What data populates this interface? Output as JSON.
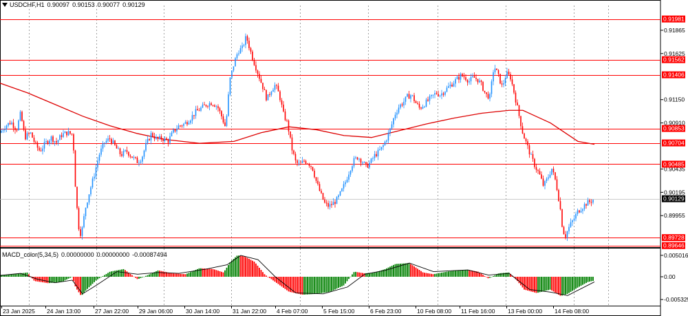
{
  "header": {
    "symbol": "USDCHF,H1",
    "open": "0.90097",
    "high": "0.90153",
    "low": "0.90077",
    "close": "0.90129"
  },
  "price_axis": {
    "ticks": [
      "0.91865",
      "0.91625",
      "0.91150",
      "0.90910",
      "0.90435",
      "0.90195",
      "0.89955"
    ],
    "level_labels": [
      "0.91981",
      "0.91562",
      "0.91406",
      "0.90853",
      "0.90704",
      "0.90485",
      "0.89728",
      "0.89646"
    ],
    "current_price": "0.90129"
  },
  "time_axis": {
    "labels": [
      "23 Jan 2025",
      "24 Jan 13:00",
      "27 Jan 22:00",
      "29 Jan 06:00",
      "30 Jan 14:00",
      "31 Jan 22:00",
      "4 Feb 07:00",
      "5 Feb 15:00",
      "6 Feb 23:00",
      "10 Feb 08:00",
      "11 Feb 16:00",
      "13 Feb 00:00",
      "14 Feb 08:00"
    ]
  },
  "macd": {
    "title": "MACD_color(5,34,5)",
    "values": [
      "0.00000000",
      "0.00000000",
      "-0.00087494"
    ],
    "axis_ticks": [
      "0.0050164",
      "0.00",
      "-0.0053254"
    ]
  },
  "colors": {
    "bull": "#1e90ff",
    "bear": "#ff0000",
    "level_line": "#ff0000",
    "ma_line": "#dd0000",
    "hist_up": "#008000",
    "hist_down": "#ff0000",
    "current_tag": "#000000"
  },
  "chart_data": {
    "type": "candlestick",
    "symbol": "USDCHF",
    "timeframe": "H1",
    "close_path": [
      [
        0,
        0.9081
      ],
      [
        8,
        0.9088
      ],
      [
        16,
        0.9092
      ],
      [
        24,
        0.9084
      ],
      [
        30,
        0.9101
      ],
      [
        36,
        0.9076
      ],
      [
        44,
        0.9081
      ],
      [
        52,
        0.9068
      ],
      [
        58,
        0.9062
      ],
      [
        66,
        0.907
      ],
      [
        74,
        0.9076
      ],
      [
        82,
        0.9071
      ],
      [
        90,
        0.9079
      ],
      [
        98,
        0.9081
      ],
      [
        106,
        0.9079
      ],
      [
        110,
        0.902
      ],
      [
        114,
        0.8985
      ],
      [
        118,
        0.8975
      ],
      [
        124,
        0.9003
      ],
      [
        130,
        0.902
      ],
      [
        136,
        0.9035
      ],
      [
        144,
        0.9058
      ],
      [
        152,
        0.9071
      ],
      [
        160,
        0.9075
      ],
      [
        168,
        0.9066
      ],
      [
        176,
        0.9058
      ],
      [
        184,
        0.9062
      ],
      [
        192,
        0.9056
      ],
      [
        200,
        0.9051
      ],
      [
        206,
        0.9055
      ],
      [
        212,
        0.9068
      ],
      [
        220,
        0.908
      ],
      [
        228,
        0.9074
      ],
      [
        236,
        0.9075
      ],
      [
        244,
        0.9072
      ],
      [
        252,
        0.9082
      ],
      [
        260,
        0.9088
      ],
      [
        268,
        0.909
      ],
      [
        276,
        0.9095
      ],
      [
        284,
        0.9102
      ],
      [
        292,
        0.9106
      ],
      [
        300,
        0.911
      ],
      [
        308,
        0.9112
      ],
      [
        316,
        0.9108
      ],
      [
        322,
        0.9098
      ],
      [
        328,
        0.9086
      ],
      [
        334,
        0.9135
      ],
      [
        340,
        0.9152
      ],
      [
        346,
        0.9165
      ],
      [
        352,
        0.9168
      ],
      [
        358,
        0.918
      ],
      [
        364,
        0.9165
      ],
      [
        370,
        0.9152
      ],
      [
        376,
        0.914
      ],
      [
        382,
        0.9128
      ],
      [
        388,
        0.9115
      ],
      [
        394,
        0.9125
      ],
      [
        400,
        0.913
      ],
      [
        406,
        0.912
      ],
      [
        412,
        0.91
      ],
      [
        418,
        0.909
      ],
      [
        424,
        0.9065
      ],
      [
        430,
        0.905
      ],
      [
        436,
        0.9048
      ],
      [
        442,
        0.9052
      ],
      [
        448,
        0.905
      ],
      [
        454,
        0.9045
      ],
      [
        460,
        0.903
      ],
      [
        466,
        0.9018
      ],
      [
        472,
        0.9008
      ],
      [
        478,
        0.9005
      ],
      [
        484,
        0.9008
      ],
      [
        490,
        0.9012
      ],
      [
        496,
        0.902
      ],
      [
        502,
        0.903
      ],
      [
        508,
        0.9042
      ],
      [
        514,
        0.9052
      ],
      [
        520,
        0.9056
      ],
      [
        526,
        0.9052
      ],
      [
        532,
        0.9046
      ],
      [
        538,
        0.905
      ],
      [
        544,
        0.9057
      ],
      [
        550,
        0.9061
      ],
      [
        556,
        0.9066
      ],
      [
        562,
        0.9075
      ],
      [
        568,
        0.9086
      ],
      [
        574,
        0.91
      ],
      [
        580,
        0.9108
      ],
      [
        586,
        0.9112
      ],
      [
        592,
        0.9118
      ],
      [
        598,
        0.912
      ],
      [
        604,
        0.9112
      ],
      [
        610,
        0.9106
      ],
      [
        616,
        0.911
      ],
      [
        622,
        0.9114
      ],
      [
        628,
        0.9118
      ],
      [
        634,
        0.9122
      ],
      [
        640,
        0.912
      ],
      [
        646,
        0.9124
      ],
      [
        652,
        0.9128
      ],
      [
        658,
        0.9132
      ],
      [
        664,
        0.9136
      ],
      [
        670,
        0.914
      ],
      [
        676,
        0.9138
      ],
      [
        682,
        0.9134
      ],
      [
        688,
        0.9138
      ],
      [
        694,
        0.9136
      ],
      [
        700,
        0.913
      ],
      [
        706,
        0.912
      ],
      [
        712,
        0.9118
      ],
      [
        718,
        0.915
      ],
      [
        724,
        0.914
      ],
      [
        730,
        0.9128
      ],
      [
        736,
        0.9142
      ],
      [
        742,
        0.9138
      ],
      [
        748,
        0.912
      ],
      [
        754,
        0.91
      ],
      [
        760,
        0.908
      ],
      [
        766,
        0.9068
      ],
      [
        772,
        0.9056
      ],
      [
        778,
        0.9046
      ],
      [
        784,
        0.9038
      ],
      [
        790,
        0.9026
      ],
      [
        796,
        0.9034
      ],
      [
        802,
        0.9044
      ],
      [
        808,
        0.903
      ],
      [
        814,
        0.9005
      ],
      [
        818,
        0.898
      ],
      [
        822,
        0.8975
      ],
      [
        828,
        0.8985
      ],
      [
        834,
        0.8992
      ],
      [
        840,
        0.9
      ],
      [
        846,
        0.9004
      ],
      [
        852,
        0.9008
      ],
      [
        858,
        0.901
      ],
      [
        864,
        0.9013
      ]
    ],
    "ma_path": [
      [
        0,
        0.9132
      ],
      [
        40,
        0.9122
      ],
      [
        80,
        0.911
      ],
      [
        120,
        0.9098
      ],
      [
        160,
        0.9088
      ],
      [
        200,
        0.908
      ],
      [
        240,
        0.9074
      ],
      [
        290,
        0.907
      ],
      [
        340,
        0.9072
      ],
      [
        380,
        0.9081
      ],
      [
        420,
        0.9087
      ],
      [
        460,
        0.9084
      ],
      [
        500,
        0.9078
      ],
      [
        540,
        0.9076
      ],
      [
        580,
        0.9083
      ],
      [
        620,
        0.909
      ],
      [
        660,
        0.9096
      ],
      [
        700,
        0.9101
      ],
      [
        740,
        0.9104
      ],
      [
        760,
        0.9104
      ],
      [
        800,
        0.9091
      ],
      [
        840,
        0.9072
      ],
      [
        864,
        0.9069
      ]
    ],
    "levels": [
      0.91981,
      0.91562,
      0.91406,
      0.90853,
      0.90704,
      0.90485,
      0.89728,
      0.89646
    ],
    "current": 0.90129,
    "ylim": [
      0.8963,
      0.9212
    ],
    "macd_range": [
      -0.0058,
      0.0058
    ],
    "macd_hist": [
      [
        0,
        0.0004
      ],
      [
        20,
        0.0006
      ],
      [
        40,
        0.001
      ],
      [
        50,
        -0.001
      ],
      [
        70,
        -0.0015
      ],
      [
        90,
        -0.0012
      ],
      [
        105,
        0.0
      ],
      [
        110,
        -0.0025
      ],
      [
        118,
        -0.0045
      ],
      [
        126,
        -0.003
      ],
      [
        140,
        -0.0008
      ],
      [
        160,
        0.0012
      ],
      [
        180,
        0.0018
      ],
      [
        200,
        -0.0006
      ],
      [
        215,
        0.0004
      ],
      [
        230,
        0.0015
      ],
      [
        250,
        0.0008
      ],
      [
        270,
        0.0006
      ],
      [
        290,
        0.002
      ],
      [
        310,
        0.0018
      ],
      [
        325,
        0.001
      ],
      [
        335,
        0.0035
      ],
      [
        345,
        0.005
      ],
      [
        355,
        0.0048
      ],
      [
        370,
        0.0035
      ],
      [
        385,
        0.0005
      ],
      [
        400,
        -0.0012
      ],
      [
        420,
        -0.0035
      ],
      [
        440,
        -0.0042
      ],
      [
        460,
        -0.004
      ],
      [
        480,
        -0.0035
      ],
      [
        500,
        -0.002
      ],
      [
        515,
        0.0012
      ],
      [
        530,
        0.0008
      ],
      [
        545,
        0.001
      ],
      [
        560,
        0.0018
      ],
      [
        575,
        0.003
      ],
      [
        595,
        0.0032
      ],
      [
        615,
        0.001
      ],
      [
        630,
        0.0006
      ],
      [
        650,
        0.0012
      ],
      [
        665,
        0.0015
      ],
      [
        680,
        0.0016
      ],
      [
        695,
        0.0012
      ],
      [
        710,
        -0.0004
      ],
      [
        725,
        0.0008
      ],
      [
        740,
        0.001
      ],
      [
        752,
        -0.001
      ],
      [
        762,
        -0.003
      ],
      [
        780,
        -0.0038
      ],
      [
        800,
        -0.003
      ],
      [
        815,
        -0.0045
      ],
      [
        825,
        -0.004
      ],
      [
        840,
        -0.0025
      ],
      [
        855,
        -0.0012
      ],
      [
        864,
        -0.0009
      ]
    ],
    "macd_signal": [
      [
        0,
        0.0003
      ],
      [
        30,
        0.0008
      ],
      [
        55,
        -0.0006
      ],
      [
        80,
        -0.0014
      ],
      [
        105,
        -0.0008
      ],
      [
        120,
        -0.004
      ],
      [
        140,
        -0.002
      ],
      [
        170,
        0.0012
      ],
      [
        200,
        0.0006
      ],
      [
        230,
        0.001
      ],
      [
        260,
        0.0008
      ],
      [
        300,
        0.0018
      ],
      [
        330,
        0.0028
      ],
      [
        350,
        0.005
      ],
      [
        375,
        0.004
      ],
      [
        400,
        0.0
      ],
      [
        430,
        -0.0038
      ],
      [
        470,
        -0.004
      ],
      [
        505,
        -0.0024
      ],
      [
        530,
        0.0006
      ],
      [
        560,
        0.0015
      ],
      [
        595,
        0.0032
      ],
      [
        630,
        0.0012
      ],
      [
        680,
        0.0016
      ],
      [
        710,
        0.0004
      ],
      [
        740,
        0.0008
      ],
      [
        770,
        -0.003
      ],
      [
        800,
        -0.0036
      ],
      [
        825,
        -0.0044
      ],
      [
        864,
        -0.0012
      ]
    ]
  }
}
